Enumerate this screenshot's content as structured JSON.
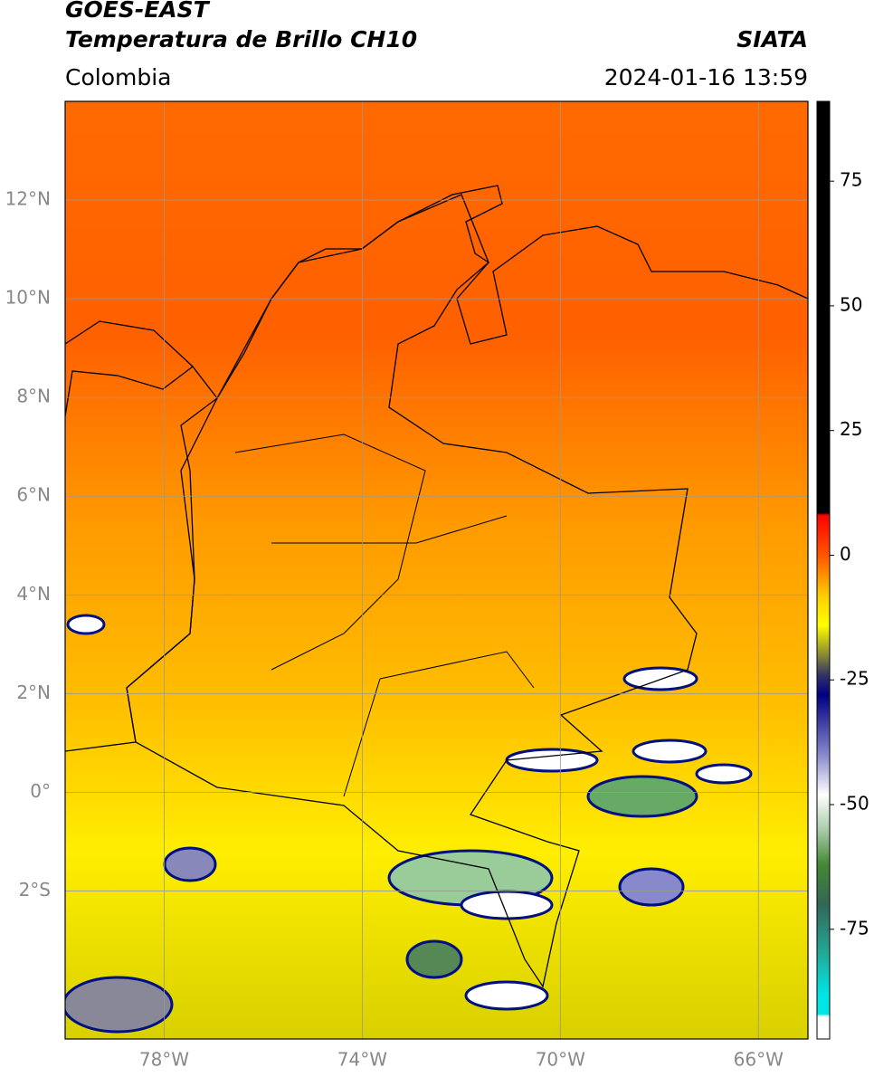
{
  "header": {
    "title": "GOES-EAST",
    "subtitle": "Temperatura de Brillo CH10",
    "source": "SIATA",
    "region": "Colombia",
    "timestamp": "2024-01-16 13:59"
  },
  "map": {
    "type": "map",
    "xlim": [
      -80,
      -65
    ],
    "ylim": [
      -5,
      14
    ],
    "xticks": [
      {
        "value": -78,
        "label": "78°W"
      },
      {
        "value": -74,
        "label": "74°W"
      },
      {
        "value": -70,
        "label": "70°W"
      },
      {
        "value": -66,
        "label": "66°W"
      }
    ],
    "yticks": [
      {
        "value": 12,
        "label": "12°N"
      },
      {
        "value": 10,
        "label": "10°N"
      },
      {
        "value": 8,
        "label": "8°N"
      },
      {
        "value": 6,
        "label": "6°N"
      },
      {
        "value": 4,
        "label": "4°N"
      },
      {
        "value": 2,
        "label": "2°N"
      },
      {
        "value": 0,
        "label": "0°"
      },
      {
        "value": -2,
        "label": "2°S"
      }
    ],
    "grid": true
  },
  "colorbar": {
    "clim": [
      -97,
      91
    ],
    "ticks": [
      75,
      50,
      25,
      0,
      -25,
      -50,
      -75
    ],
    "colormap": [
      {
        "value": 91,
        "color": "#000000"
      },
      {
        "value": 8.5,
        "color": "#000000"
      },
      {
        "value": 8,
        "color": "#ff0000"
      },
      {
        "value": 0,
        "color": "#ff5500"
      },
      {
        "value": -8,
        "color": "#ffcc00"
      },
      {
        "value": -14,
        "color": "#ffff00"
      },
      {
        "value": -20,
        "color": "#888833"
      },
      {
        "value": -24,
        "color": "#333366"
      },
      {
        "value": -28,
        "color": "#000080"
      },
      {
        "value": -40,
        "color": "#8888cc"
      },
      {
        "value": -48,
        "color": "#ffffff"
      },
      {
        "value": -55,
        "color": "#aaccaa"
      },
      {
        "value": -62,
        "color": "#448833"
      },
      {
        "value": -70,
        "color": "#336655"
      },
      {
        "value": -80,
        "color": "#22aa99"
      },
      {
        "value": -88,
        "color": "#00e5e5"
      },
      {
        "value": -92,
        "color": "#00e5e5"
      },
      {
        "value": -92.5,
        "color": "#ffffff"
      },
      {
        "value": -97,
        "color": "#ffffff"
      }
    ]
  }
}
